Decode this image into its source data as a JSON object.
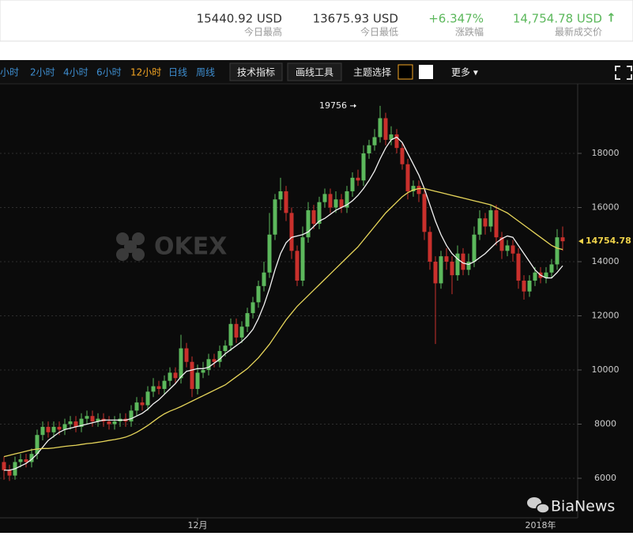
{
  "header": {
    "stats": [
      {
        "value": "15440.92 USD",
        "label": "今日最高",
        "color": "#333333"
      },
      {
        "value": "13675.93 USD",
        "label": "今日最低",
        "color": "#333333"
      },
      {
        "value": "+6.347%",
        "label": "涨跌幅",
        "color": "#5cb85c"
      },
      {
        "value": "14,754.78 USD",
        "arrow": "↑",
        "label": "最新成交价",
        "color": "#5cb85c"
      }
    ]
  },
  "toolbar": {
    "intervals": [
      "小时",
      "2小时",
      "4小时",
      "6小时",
      "12小时",
      "日线",
      "周线"
    ],
    "active_interval": 4,
    "buttons": [
      "技术指标",
      "画线工具"
    ],
    "theme_label": "主题选择",
    "more": "更多 ▾"
  },
  "watermarks": {
    "logo": "OKEX",
    "source": "BiaNews"
  },
  "chart_data": {
    "type": "candlestick",
    "up_color": "#5cb85c",
    "down_color": "#c9302c",
    "categories": [
      null,
      null,
      null,
      null,
      null,
      null,
      null,
      null,
      null,
      null,
      null,
      null,
      null,
      null,
      null,
      null,
      null,
      null,
      null,
      null,
      null,
      null,
      null,
      null,
      null,
      null,
      null,
      null,
      null,
      null,
      null,
      null,
      null,
      null,
      null,
      "12月",
      null,
      null,
      null,
      null,
      null,
      null,
      null,
      null,
      null,
      null,
      null,
      null,
      null,
      null,
      null,
      null,
      null,
      null,
      null,
      null,
      null,
      null,
      null,
      null,
      null,
      null,
      null,
      null,
      null,
      null,
      null,
      null,
      null,
      null,
      null,
      null,
      null,
      null,
      null,
      null,
      null,
      null,
      null,
      null,
      null,
      null,
      null,
      null,
      null,
      null,
      null,
      null,
      null,
      null,
      null,
      null,
      null,
      null,
      null,
      null,
      null,
      "2018年",
      null,
      null,
      null,
      null
    ],
    "open": [
      6600,
      6300,
      6100,
      6600,
      6700,
      6600,
      6900,
      7600,
      7900,
      7700,
      7900,
      7800,
      8000,
      8100,
      7900,
      8200,
      8300,
      8100,
      8200,
      8100,
      8000,
      8100,
      8200,
      8100,
      8500,
      8800,
      8700,
      9200,
      9400,
      9300,
      9600,
      9900,
      9700,
      10800,
      10300,
      9300,
      9900,
      10000,
      10400,
      10300,
      10700,
      10900,
      11700,
      11200,
      11600,
      12100,
      12500,
      13100,
      13600,
      15000,
      16300,
      16600,
      15800,
      14400,
      13300,
      14900,
      15900,
      15400,
      16200,
      16500,
      16000,
      16300,
      16000,
      16600,
      17100,
      17000,
      18000,
      18300,
      18600,
      19300,
      18500,
      18700,
      18200,
      17600,
      16600,
      16800,
      16500,
      15100,
      14000,
      13200,
      14200,
      14000,
      13500,
      14300,
      13700,
      14000,
      15000,
      15600,
      15300,
      15900,
      14900,
      14400,
      14600,
      14300,
      13300,
      12900,
      13300,
      13600,
      13400,
      13600,
      13900,
      14900
    ],
    "high": [
      6800,
      6500,
      6800,
      6900,
      6900,
      7100,
      7800,
      8100,
      8100,
      8100,
      8100,
      8200,
      8300,
      8300,
      8400,
      8500,
      8500,
      8400,
      8400,
      8300,
      8300,
      8400,
      8400,
      8700,
      9000,
      9000,
      9400,
      9700,
      9600,
      9800,
      10100,
      10100,
      11300,
      11000,
      10500,
      10200,
      10300,
      10600,
      10600,
      10900,
      11100,
      11900,
      11900,
      11800,
      12300,
      12700,
      13300,
      14000,
      15800,
      16500,
      17100,
      16800,
      16000,
      14600,
      15300,
      16200,
      16100,
      16400,
      16700,
      16700,
      16600,
      16500,
      16800,
      17300,
      17400,
      18300,
      18500,
      18900,
      19756,
      19500,
      19000,
      18900,
      18400,
      17800,
      17000,
      17000,
      16700,
      15300,
      14200,
      14400,
      14500,
      14200,
      14600,
      14500,
      14300,
      15300,
      15900,
      15800,
      16100,
      16100,
      15100,
      14800,
      14800,
      14500,
      13500,
      13500,
      13800,
      13800,
      13800,
      14100,
      15200,
      15300
    ],
    "low": [
      5950,
      5900,
      5950,
      6400,
      6400,
      6400,
      6700,
      7400,
      7500,
      7500,
      7600,
      7600,
      7800,
      7700,
      7700,
      8000,
      7900,
      7900,
      7900,
      7800,
      7800,
      7900,
      7900,
      7900,
      8300,
      8500,
      8500,
      9000,
      9100,
      9100,
      9400,
      9500,
      9500,
      10100,
      9000,
      9100,
      9700,
      9800,
      10100,
      10100,
      10500,
      10700,
      11000,
      11000,
      11400,
      11900,
      12300,
      12900,
      13400,
      14800,
      15900,
      15500,
      14100,
      13100,
      13100,
      14700,
      15200,
      15200,
      16000,
      15800,
      15800,
      15800,
      15800,
      16400,
      16800,
      16800,
      17800,
      18100,
      18400,
      18300,
      18300,
      18000,
      17400,
      16300,
      16400,
      16200,
      14800,
      13700,
      10960,
      13000,
      13700,
      12800,
      13300,
      13500,
      13500,
      13800,
      14800,
      15000,
      15100,
      14600,
      14100,
      14200,
      14000,
      13000,
      12600,
      12700,
      13100,
      13200,
      13200,
      13400,
      13700,
      14400
    ],
    "close": [
      6300,
      6100,
      6600,
      6700,
      6600,
      6900,
      7600,
      7900,
      7700,
      7900,
      7800,
      8000,
      8100,
      7900,
      8200,
      8300,
      8100,
      8200,
      8100,
      8000,
      8100,
      8200,
      8100,
      8500,
      8800,
      8700,
      9200,
      9400,
      9300,
      9600,
      9900,
      9700,
      10800,
      10300,
      9300,
      9900,
      10000,
      10400,
      10300,
      10700,
      10900,
      11700,
      11200,
      11600,
      12100,
      12500,
      13100,
      13600,
      15000,
      16300,
      16600,
      15800,
      14400,
      13300,
      14900,
      15900,
      15400,
      16200,
      16500,
      16000,
      16300,
      16000,
      16600,
      17100,
      17000,
      18000,
      18300,
      18600,
      19300,
      18500,
      18700,
      18200,
      17600,
      16600,
      16800,
      16500,
      15100,
      14000,
      13200,
      14200,
      14000,
      13500,
      14300,
      13700,
      14000,
      15000,
      15600,
      15300,
      15900,
      14900,
      14400,
      14600,
      14300,
      13300,
      12900,
      13300,
      13600,
      13400,
      13600,
      13900,
      14900,
      14754.78
    ],
    "lines": [
      {
        "color": "#f2f2f2",
        "values": [
          6300,
          6300,
          6350,
          6450,
          6550,
          6700,
          6900,
          7150,
          7400,
          7550,
          7700,
          7800,
          7850,
          7900,
          7950,
          8000,
          8050,
          8100,
          8150,
          8150,
          8150,
          8150,
          8150,
          8200,
          8300,
          8400,
          8550,
          8750,
          8900,
          9100,
          9300,
          9500,
          9750,
          9950,
          10000,
          10050,
          10050,
          10100,
          10250,
          10400,
          10600,
          10750,
          10900,
          11050,
          11250,
          11500,
          11900,
          12400,
          13000,
          13700,
          14300,
          14700,
          14900,
          14950,
          15000,
          15100,
          15300,
          15500,
          15600,
          15750,
          15900,
          16000,
          16100,
          16250,
          16450,
          16700,
          17000,
          17350,
          17800,
          18200,
          18500,
          18600,
          18400,
          18000,
          17600,
          17200,
          16700,
          16100,
          15500,
          15000,
          14600,
          14300,
          14100,
          13950,
          13900,
          14000,
          14150,
          14300,
          14500,
          14700,
          14850,
          14950,
          14900,
          14600,
          14300,
          14000,
          13700,
          13500,
          13400,
          13400,
          13600,
          13850
        ]
      },
      {
        "color": "#e6d55a",
        "values": [
          6800,
          6850,
          6900,
          6950,
          7000,
          7050,
          7080,
          7100,
          7100,
          7120,
          7150,
          7180,
          7200,
          7220,
          7250,
          7280,
          7300,
          7330,
          7360,
          7400,
          7430,
          7470,
          7520,
          7600,
          7700,
          7820,
          7950,
          8100,
          8250,
          8380,
          8480,
          8560,
          8650,
          8750,
          8850,
          8950,
          9050,
          9150,
          9250,
          9350,
          9450,
          9600,
          9750,
          9900,
          10050,
          10250,
          10450,
          10700,
          10950,
          11250,
          11550,
          11850,
          12100,
          12350,
          12550,
          12750,
          12950,
          13150,
          13350,
          13550,
          13750,
          13950,
          14150,
          14350,
          14550,
          14800,
          15050,
          15300,
          15550,
          15800,
          16000,
          16200,
          16400,
          16550,
          16650,
          16700,
          16700,
          16650,
          16600,
          16550,
          16500,
          16450,
          16400,
          16350,
          16300,
          16250,
          16200,
          16150,
          16100,
          16000,
          15900,
          15800,
          15650,
          15500,
          15350,
          15200,
          15050,
          14900,
          14750,
          14600,
          14500,
          14450
        ]
      }
    ],
    "high_annotation": "19756",
    "high_index": 68,
    "last_price_label": "14754.78",
    "last_color": "#f0d34a",
    "ylim": [
      4540,
      20570
    ],
    "yticks": [
      6000,
      8000,
      10000,
      12000,
      14000,
      16000,
      18000
    ],
    "grid": true
  }
}
